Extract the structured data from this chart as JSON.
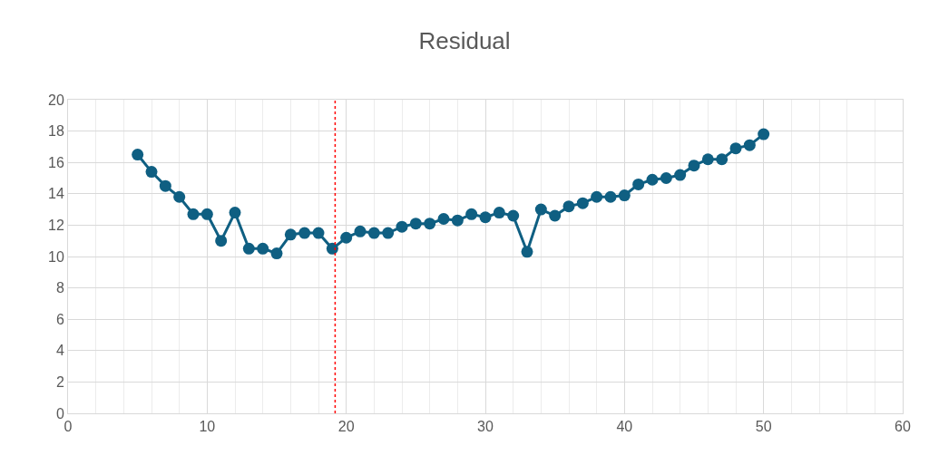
{
  "chart_data": {
    "type": "line",
    "title": "Residual",
    "x": [
      5,
      6,
      7,
      8,
      9,
      10,
      11,
      12,
      13,
      14,
      15,
      16,
      17,
      18,
      19,
      20,
      21,
      22,
      23,
      24,
      25,
      26,
      27,
      28,
      29,
      30,
      31,
      32,
      33,
      34,
      35,
      36,
      37,
      38,
      39,
      40,
      41,
      42,
      43,
      44,
      45,
      46,
      47,
      48,
      49,
      50
    ],
    "series": [
      {
        "color": "#0f5f82",
        "values": [
          16.5,
          15.4,
          14.5,
          13.8,
          12.7,
          12.7,
          11.0,
          12.8,
          10.5,
          10.5,
          10.2,
          11.4,
          11.5,
          11.5,
          10.5,
          11.2,
          11.6,
          11.5,
          11.5,
          11.9,
          12.1,
          12.1,
          12.4,
          12.3,
          12.7,
          12.5,
          12.8,
          12.6,
          10.3,
          13.0,
          12.6,
          13.2,
          13.4,
          13.8,
          13.8,
          13.9,
          14.6,
          14.9,
          15.0,
          15.2,
          15.8,
          16.2,
          16.2,
          16.9,
          17.1,
          17.8
        ]
      }
    ],
    "xlim": [
      0,
      60
    ],
    "xticks": [
      0,
      10,
      20,
      30,
      40,
      50,
      60
    ],
    "ylim": [
      0,
      20
    ],
    "yticks": [
      0,
      2,
      4,
      6,
      8,
      10,
      12,
      14,
      16,
      18,
      20
    ],
    "grid": true,
    "marker": "circle",
    "line_style": "solid",
    "ref_lines": [
      {
        "axis": "x",
        "value": 19.2,
        "color": "#ff0000",
        "line_style": "dotted"
      }
    ]
  }
}
